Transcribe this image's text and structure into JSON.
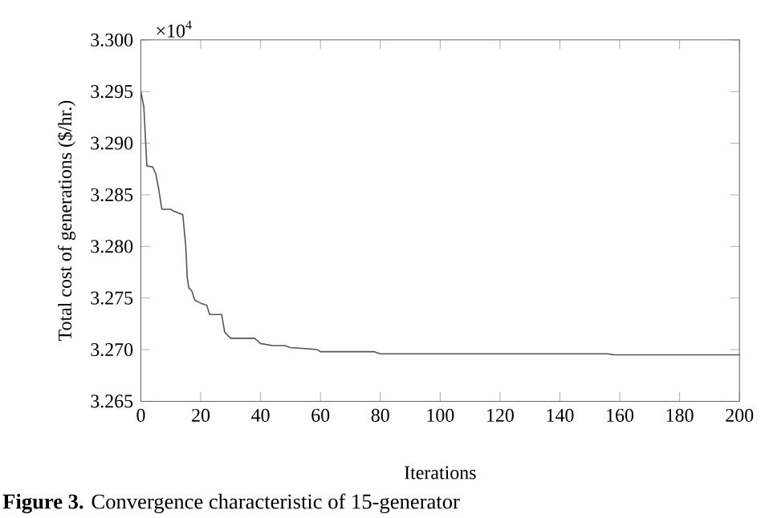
{
  "chart_data": {
    "type": "line",
    "xlabel": "Iterations",
    "ylabel": "Total cost of generations ($/hr.)",
    "annotations": [
      "×10$^{4}$",
      "**Figure 3.** Convergence characteristic of 15-generator"
    ],
    "xlim": [
      0,
      200
    ],
    "ylim": [
      3.265,
      3.3
    ],
    "xticks": [
      0,
      20,
      40,
      60,
      80,
      100,
      120,
      140,
      160,
      180,
      200
    ],
    "yticks": [
      3.265,
      {
        "value": 3.27,
        "label": "3.270"
      },
      3.275,
      {
        "value": 3.28,
        "label": "3.280"
      },
      3.285,
      {
        "value": 3.29,
        "label": "3.290"
      },
      3.295,
      {
        "value": 3.3,
        "label": "3.300"
      }
    ],
    "grid": false,
    "marker": "none",
    "line_style": "solid",
    "series": [
      {
        "color": "#555555",
        "x": [
          0,
          1,
          2,
          4,
          5,
          6,
          7,
          10,
          11,
          14,
          15,
          15.5,
          16,
          17,
          18,
          20,
          22,
          23,
          27,
          28,
          30,
          38,
          40,
          44,
          48,
          50,
          55,
          59,
          60,
          78,
          80,
          156,
          158,
          200
        ],
        "values": [
          3.295,
          3.2935,
          3.2878,
          3.2877,
          3.287,
          3.2855,
          3.2836,
          3.2836,
          3.2834,
          3.2831,
          3.28,
          3.277,
          3.276,
          3.2757,
          3.2748,
          3.2745,
          3.2743,
          3.2734,
          3.2734,
          3.2717,
          3.2711,
          3.2711,
          3.2706,
          3.2704,
          3.2704,
          3.2702,
          3.2701,
          3.27,
          3.2698,
          3.2698,
          3.2696,
          3.2696,
          3.2695,
          3.2695
        ]
      }
    ]
  }
}
